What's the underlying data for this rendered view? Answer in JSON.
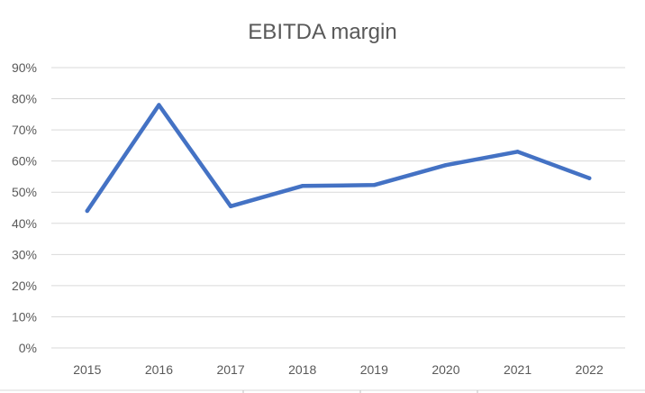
{
  "chart_data": {
    "type": "line",
    "title": "EBITDA margin",
    "xlabel": "",
    "ylabel": "",
    "categories": [
      "2015",
      "2016",
      "2017",
      "2018",
      "2019",
      "2020",
      "2021",
      "2022"
    ],
    "series": [
      {
        "values": [
          0.44,
          0.78,
          0.455,
          0.52,
          0.523,
          0.587,
          0.63,
          0.545
        ],
        "color": "#4472C4"
      }
    ],
    "ylim": [
      0,
      0.9
    ],
    "yticks": [
      0,
      0.1,
      0.2,
      0.3,
      0.4,
      0.5,
      0.6,
      0.7,
      0.8,
      0.9
    ],
    "ytick_labels": [
      "0%",
      "10%",
      "20%",
      "30%",
      "40%",
      "50%",
      "60%",
      "70%",
      "80%",
      "90%"
    ],
    "grid": true,
    "legend": "none",
    "gridline_color": "#D9D9D9"
  }
}
